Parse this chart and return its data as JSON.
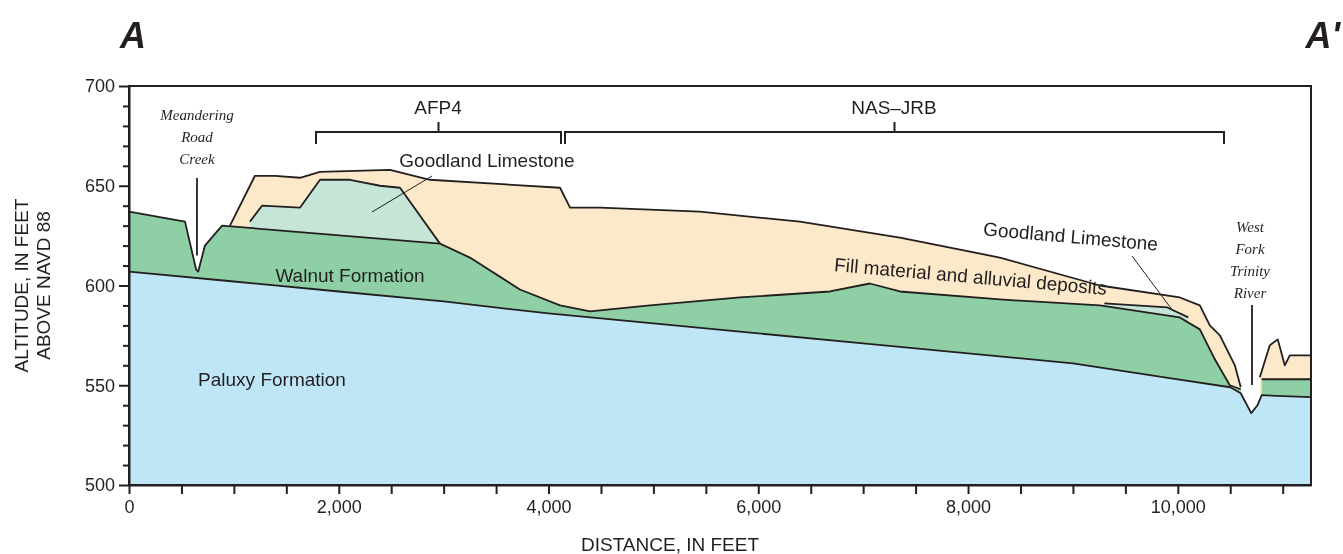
{
  "chart_data": {
    "type": "area",
    "xlabel": "DISTANCE, IN FEET",
    "ylabel": "ALTITUDE, IN FEET\nABOVE NAVD 88",
    "xlim": [
      0,
      11270
    ],
    "ylim": [
      500,
      700
    ],
    "xticks": [
      0,
      {
        "value": 500,
        "label": null
      },
      {
        "value": 1000,
        "label": null
      },
      {
        "value": 1500,
        "label": null
      },
      {
        "value": 2000,
        "label": "2,000"
      },
      {
        "value": 2500,
        "label": null
      },
      {
        "value": 3000,
        "label": null
      },
      {
        "value": 3500,
        "label": null
      },
      {
        "value": 4000,
        "label": "4,000"
      },
      {
        "value": 4500,
        "label": null
      },
      {
        "value": 5000,
        "label": null
      },
      {
        "value": 5500,
        "label": null
      },
      {
        "value": 6000,
        "label": "6,000"
      },
      {
        "value": 6500,
        "label": null
      },
      {
        "value": 7000,
        "label": null
      },
      {
        "value": 7500,
        "label": null
      },
      {
        "value": 8000,
        "label": "8,000"
      },
      {
        "value": 8500,
        "label": null
      },
      {
        "value": 9000,
        "label": null
      },
      {
        "value": 9500,
        "label": null
      },
      {
        "value": 10000,
        "label": "10,000"
      },
      {
        "value": 10500,
        "label": null
      },
      {
        "value": 11000,
        "label": null
      }
    ],
    "yticks": [
      500,
      {
        "value": 510,
        "label": null
      },
      {
        "value": 520,
        "label": null
      },
      {
        "value": 530,
        "label": null
      },
      {
        "value": 540,
        "label": null
      },
      550,
      {
        "value": 560,
        "label": null
      },
      {
        "value": 570,
        "label": null
      },
      {
        "value": 580,
        "label": null
      },
      {
        "value": 590,
        "label": null
      },
      600,
      {
        "value": 610,
        "label": null
      },
      {
        "value": 620,
        "label": null
      },
      {
        "value": 630,
        "label": null
      },
      {
        "value": 640,
        "label": null
      },
      650,
      {
        "value": 660,
        "label": null
      },
      {
        "value": 670,
        "label": null
      },
      {
        "value": 680,
        "label": null
      },
      {
        "value": 690,
        "label": null
      },
      700
    ],
    "series": [
      {
        "color": "#fbe9c9",
        "x": [
          963,
          1201,
          1392,
          1630,
          1821,
          2488,
          2870,
          4110,
          4205,
          4490,
          5443,
          6397,
          7350,
          8303,
          9257,
          10019,
          10210,
          10305,
          10401,
          10544,
          10600,
          10720,
          10782,
          10877,
          10953,
          11020,
          11068,
          11270
        ],
        "values": [
          630,
          655,
          655,
          654,
          657,
          658,
          653,
          649,
          639,
          639,
          637,
          632,
          624,
          614,
          600,
          594,
          590,
          580,
          575,
          560,
          549,
          null,
          554,
          570,
          573,
          560,
          565,
          565
        ]
      },
      {
        "color": "#c5e6d6",
        "x": [
          1153,
          1268,
          1630,
          1821,
          2107,
          2393,
          2584,
          2965,
          3100,
          9300,
          9600,
          9900,
          10100
        ],
        "values": [
          632,
          640,
          639,
          653,
          653,
          650,
          649,
          621,
          null,
          591,
          590,
          589,
          584
        ]
      },
      {
        "color": "#8ecfa6",
        "x": [
          0,
          534,
          640,
          660,
          724,
          887,
          2965,
          3250,
          3727,
          4110,
          4395,
          4967,
          5825,
          6683,
          7064,
          7350,
          8303,
          9257,
          10019,
          10210,
          10353,
          10496,
          10600,
          10700,
          10800,
          11270
        ],
        "values": [
          637,
          632,
          608,
          607,
          620,
          630,
          621,
          614,
          598,
          590,
          587,
          590,
          594,
          597,
          601,
          597,
          593,
          590,
          584,
          578,
          563,
          550,
          548,
          null,
          553,
          553
        ]
      },
      {
        "color": "#bfe6f7",
        "x": [
          0,
          1000,
          2000,
          3000,
          4000,
          5000,
          6000,
          7000,
          8000,
          9000,
          10000,
          10500,
          10600,
          10700,
          10760,
          10800,
          11270
        ],
        "values": [
          607,
          602,
          597,
          592,
          586,
          581,
          576,
          571,
          566,
          561,
          553,
          549,
          546,
          536,
          540,
          545,
          544
        ]
      }
    ],
    "annotations": [
      "A",
      "A'",
      {
        "text": "Meandering Road Creek",
        "x": 648,
        "y": 615
      },
      "Goodland Limestone",
      "Walnut Formation",
      "Paluxy Formation",
      "Fill material and alluvial deposits",
      {
        "text": "Goodland Limestone",
        "x": 9943,
        "y": 588
      },
      "West Fork Trinity River",
      "AFP4",
      "NAS–JRB"
    ]
  }
}
